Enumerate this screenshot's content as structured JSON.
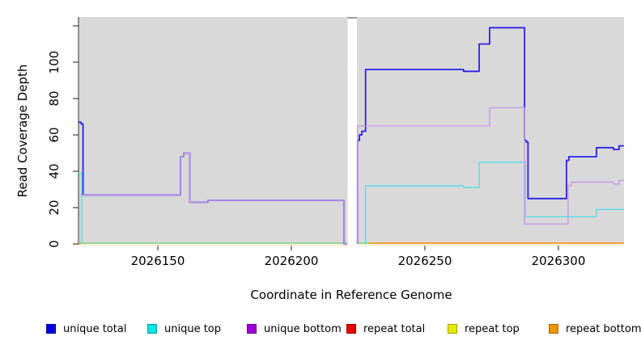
{
  "chart_data": {
    "type": "line",
    "title": "",
    "xlabel": "Coordinate in Reference Genome",
    "ylabel": "Read Coverage Depth",
    "xlim": [
      2026120,
      2026325
    ],
    "ylim": [
      0,
      125
    ],
    "grid": false,
    "plot_background": "#d9d9d9",
    "x_ticks": [
      2026150,
      2026200,
      2026250,
      2026300
    ],
    "x_tick_labels": [
      "2026150",
      "2026200",
      "2026250",
      "2026300"
    ],
    "y_ticks": [
      0,
      20,
      40,
      60,
      80,
      100
    ],
    "y_tick_labels": [
      "0",
      "20",
      "40",
      "60",
      "80",
      "100"
    ],
    "y_unlabeled_ticks": [
      120
    ],
    "coverage_gap_x": [
      2026221,
      2026224.5
    ],
    "series": [
      {
        "name": "unique total",
        "color": "#2b21e3",
        "width": 1.8,
        "paths": [
          [
            [
              2026120.3,
              67
            ],
            [
              2026121.3,
              66
            ],
            [
              2026122,
              27
            ],
            [
              2026158.5,
              48
            ],
            [
              2026159.7,
              50
            ],
            [
              2026162,
              23
            ],
            [
              2026168.8,
              24
            ],
            [
              2026219.7,
              0
            ],
            [
              2026220.9,
              0
            ]
          ],
          [
            [
              2026224.8,
              0
            ],
            [
              2026224.8,
              57
            ],
            [
              2026225.5,
              60
            ],
            [
              2026226.4,
              62
            ],
            [
              2026227.8,
              96
            ],
            [
              2026264.5,
              95
            ],
            [
              2026270.3,
              110
            ],
            [
              2026274.2,
              119
            ],
            [
              2026287.3,
              57
            ],
            [
              2026288,
              56
            ],
            [
              2026288.6,
              25
            ],
            [
              2026303,
              46
            ],
            [
              2026303.9,
              48
            ],
            [
              2026314.2,
              53
            ],
            [
              2026320.6,
              52
            ],
            [
              2026322.7,
              54
            ],
            [
              2026324.5,
              54
            ]
          ]
        ]
      },
      {
        "name": "unique top",
        "color": "#52dfe0",
        "width": 1.4,
        "paths": [
          [
            [
              2026120.3,
              39
            ],
            [
              2026121.5,
              39
            ],
            [
              2026121.5,
              0
            ]
          ],
          [
            [
              2026227.8,
              0
            ],
            [
              2026227.8,
              32
            ],
            [
              2026264.5,
              31
            ],
            [
              2026270.3,
              45
            ],
            [
              2026287.6,
              15
            ],
            [
              2026314.2,
              19
            ],
            [
              2026324.5,
              19
            ]
          ]
        ]
      },
      {
        "name": "unique bottom",
        "color": "#c49ae8",
        "width": 1.4,
        "paths": [
          [
            [
              2026120.3,
              27
            ],
            [
              2026158.5,
              48
            ],
            [
              2026159.7,
              50
            ],
            [
              2026162,
              23
            ],
            [
              2026168.8,
              24
            ],
            [
              2026219.7,
              0
            ],
            [
              2026220.9,
              0
            ]
          ],
          [
            [
              2026224.8,
              0
            ],
            [
              2026224.8,
              65
            ],
            [
              2026274.2,
              75
            ],
            [
              2026287.3,
              11
            ],
            [
              2026303.6,
              32
            ],
            [
              2026304.8,
              34
            ],
            [
              2026320.6,
              33
            ],
            [
              2026322.7,
              35
            ],
            [
              2026324.5,
              35
            ]
          ]
        ]
      },
      {
        "name": "repeat total",
        "color": "#e01010",
        "width": 1.4,
        "paths": []
      },
      {
        "name": "repeat top",
        "color": "#e8e812",
        "width": 1.4,
        "paths": []
      },
      {
        "name": "repeat bottom",
        "color": "#f5991f",
        "width": 1.6,
        "paths": []
      }
    ],
    "baseline_segments": [
      {
        "color": "#f5991f",
        "x": [
          2026120.3,
          2026121.5
        ]
      },
      {
        "color": "#90d690",
        "x": [
          2026121.5,
          2026220.9
        ]
      },
      {
        "color": "#90d690",
        "x": [
          2026224.5,
          2026228.9
        ]
      },
      {
        "color": "#f5991f",
        "x": [
          2026228.9,
          2026324.5
        ]
      }
    ],
    "sub_baseline_segments": [
      {
        "color": "#efe9c2",
        "x": [
          2026120.3,
          2026220.9
        ]
      },
      {
        "color": "#efe9c2",
        "x": [
          2026224.5,
          2026324.5
        ]
      }
    ],
    "legend": [
      {
        "label": "unique total",
        "color": "#0000e0",
        "border": "#000099"
      },
      {
        "label": "unique top",
        "color": "#00e5e5",
        "border": "#009d9d"
      },
      {
        "label": "unique bottom",
        "color": "#9d00d6",
        "border": "#670090"
      },
      {
        "label": "repeat total",
        "color": "#e60000",
        "border": "#9b0000"
      },
      {
        "label": "repeat top",
        "color": "#e8e800",
        "border": "#a0a000"
      },
      {
        "label": "repeat bottom",
        "color": "#f09500",
        "border": "#a56600"
      }
    ],
    "legend_position": "bottom"
  }
}
